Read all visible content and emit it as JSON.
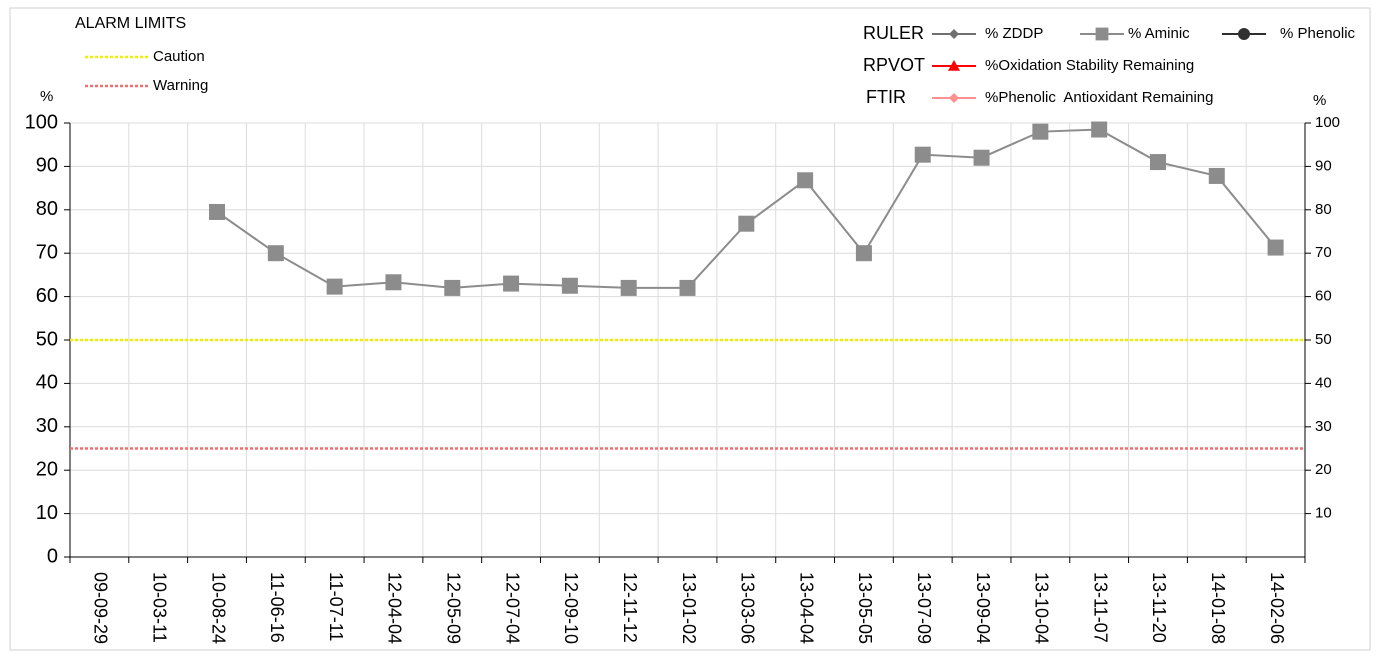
{
  "chart_data": {
    "type": "line",
    "categories": [
      "09-09-29",
      "10-03-11",
      "10-08-24",
      "11-06-16",
      "11-07-11",
      "12-04-04",
      "12-05-09",
      "12-07-04",
      "12-09-10",
      "12-11-12",
      "13-01-02",
      "13-03-06",
      "13-04-04",
      "13-05-05",
      "13-07-09",
      "13-09-04",
      "13-10-04",
      "13-11-07",
      "13-11-20",
      "14-01-08",
      "14-02-06"
    ],
    "ylabel": "%",
    "y2label": "%",
    "ylim": [
      0,
      100
    ],
    "yticks": [
      0,
      10,
      20,
      30,
      40,
      50,
      60,
      70,
      80,
      90,
      100
    ],
    "y2lim": [
      0,
      100
    ],
    "y2ticks": [
      10,
      20,
      30,
      40,
      50,
      60,
      70,
      80,
      90,
      100
    ],
    "grid": true,
    "alarm_limits": {
      "title": "ALARM LIMITS",
      "lines": [
        {
          "name": "Caution",
          "value": 50,
          "color": "#f0f000"
        },
        {
          "name": "Warning",
          "value": 25,
          "color": "#f07070"
        }
      ]
    },
    "legend_groups": [
      {
        "name": "RULER",
        "series": [
          {
            "name": "% ZDDP",
            "color": "#707070",
            "marker": "diamond",
            "values": [
              null,
              null,
              null,
              null,
              null,
              null,
              null,
              null,
              null,
              null,
              null,
              null,
              null,
              null,
              null,
              null,
              null,
              null,
              null,
              null,
              null
            ]
          },
          {
            "name": "% Aminic",
            "color": "#8c8c8c",
            "marker": "square",
            "values": [
              null,
              null,
              79.5,
              70,
              62.3,
              63.3,
              62,
              63,
              62.5,
              62,
              62,
              76.8,
              86.8,
              70,
              92.7,
              92,
              98,
              98.5,
              91,
              87.8,
              71.3
            ]
          },
          {
            "name": "% Phenolic",
            "color": "#303030",
            "marker": "octagon",
            "values": [
              null,
              null,
              null,
              null,
              null,
              null,
              null,
              null,
              null,
              null,
              null,
              null,
              null,
              null,
              null,
              null,
              null,
              null,
              null,
              null,
              null
            ]
          }
        ]
      },
      {
        "name": "RPVOT",
        "series": [
          {
            "name": "%Oxidation Stability Remaining",
            "color": "#ff0000",
            "marker": "triangle",
            "values": [
              null,
              null,
              null,
              null,
              null,
              null,
              null,
              null,
              null,
              null,
              null,
              null,
              null,
              null,
              null,
              null,
              null,
              null,
              null,
              null,
              null
            ]
          }
        ]
      },
      {
        "name": "FTIR",
        "series": [
          {
            "name": "%Phenolic  Antioxidant Remaining",
            "color": "#ff9090",
            "marker": "diamond",
            "values": [
              null,
              null,
              null,
              null,
              null,
              null,
              null,
              null,
              null,
              null,
              null,
              null,
              null,
              null,
              null,
              null,
              null,
              null,
              null,
              null,
              null
            ]
          }
        ]
      }
    ]
  }
}
